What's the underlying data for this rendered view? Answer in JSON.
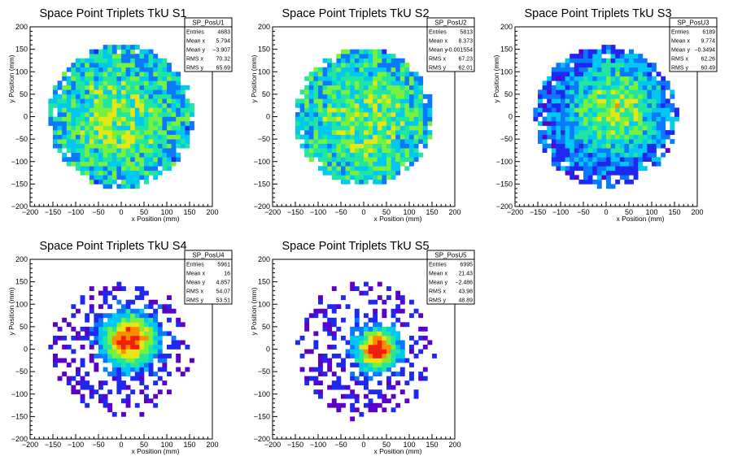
{
  "chart_data": [
    {
      "type": "heatmap",
      "title": "Space Point Triplets TkU S1",
      "xlabel": "x Position (mm)",
      "ylabel": "y Position (mm)",
      "xlim": [
        -200,
        200
      ],
      "ylim": [
        -200,
        200
      ],
      "xticks": [
        "−200",
        "−150",
        "−100",
        "−50",
        "0",
        "50",
        "100",
        "150",
        "200"
      ],
      "yticks": [
        "−200",
        "−150",
        "−100",
        "−50",
        "0",
        "50",
        "100",
        "150",
        "200"
      ],
      "stats": {
        "name": "SP_PosU1",
        "rows": [
          [
            "Entries",
            "4683"
          ],
          [
            "Mean x",
            "5.794"
          ],
          [
            "Mean y",
            "−3.907"
          ],
          [
            "RMS x",
            "70.32"
          ],
          [
            "RMS y",
            "65.69"
          ]
        ]
      },
      "distribution": {
        "shape": "uniform-disk",
        "radius_mm": 155,
        "center_x_mm": 5.8,
        "center_y_mm": -3.9,
        "peak_center_mm": [
          -10,
          -5
        ]
      }
    },
    {
      "type": "heatmap",
      "title": "Space Point Triplets TkU S2",
      "xlabel": "x Position (mm)",
      "ylabel": "y Position (mm)",
      "xlim": [
        -200,
        200
      ],
      "ylim": [
        -200,
        200
      ],
      "xticks": [
        "−200",
        "−150",
        "−100",
        "−50",
        "0",
        "50",
        "100",
        "150",
        "200"
      ],
      "yticks": [
        "−200",
        "−150",
        "−100",
        "−50",
        "0",
        "50",
        "100",
        "150",
        "200"
      ],
      "stats": {
        "name": "SP_PosU2",
        "rows": [
          [
            "Entries",
            "5813"
          ],
          [
            "Mean x",
            "8.373"
          ],
          [
            "Mean y",
            "−0.001554"
          ],
          [
            "RMS x",
            "67.23"
          ],
          [
            "RMS y",
            "62.01"
          ]
        ]
      },
      "distribution": {
        "shape": "uniform-disk",
        "radius_mm": 150,
        "center_x_mm": 8.4,
        "center_y_mm": 0.0,
        "peak_center_mm": [
          0,
          0
        ]
      }
    },
    {
      "type": "heatmap",
      "title": "Space Point Triplets TkU S3",
      "xlabel": "x Position (mm)",
      "ylabel": "y Position (mm)",
      "xlim": [
        -200,
        200
      ],
      "ylim": [
        -200,
        200
      ],
      "xticks": [
        "−200",
        "−150",
        "−100",
        "−50",
        "0",
        "50",
        "100",
        "150",
        "200"
      ],
      "yticks": [
        "−200",
        "−150",
        "−100",
        "−50",
        "0",
        "50",
        "100",
        "150",
        "200"
      ],
      "stats": {
        "name": "SP_PosU3",
        "rows": [
          [
            "Entries",
            "6189"
          ],
          [
            "Mean x",
            "9.774"
          ],
          [
            "Mean y",
            "−0.3494"
          ],
          [
            "RMS x",
            "62.26"
          ],
          [
            "RMS y",
            "60.49"
          ]
        ]
      },
      "distribution": {
        "shape": "soft-disk",
        "radius_mm": 150,
        "center_x_mm": 9.8,
        "center_y_mm": -0.3,
        "peak_center_mm": [
          20,
          15
        ]
      }
    },
    {
      "type": "heatmap",
      "title": "Space Point Triplets TkU S4",
      "xlabel": "x Position (mm)",
      "ylabel": "y Position (mm)",
      "xlim": [
        -200,
        200
      ],
      "ylim": [
        -200,
        200
      ],
      "xticks": [
        "−200",
        "−150",
        "−100",
        "−50",
        "0",
        "50",
        "100",
        "150",
        "200"
      ],
      "yticks": [
        "−200",
        "−150",
        "−100",
        "−50",
        "0",
        "50",
        "100",
        "150",
        "200"
      ],
      "stats": {
        "name": "SP_PosU4",
        "rows": [
          [
            "Entries",
            "5961"
          ],
          [
            "Mean x",
            "16"
          ],
          [
            "Mean y",
            "4.857"
          ],
          [
            "RMS x",
            "54.07"
          ],
          [
            "RMS y",
            "53.51"
          ]
        ]
      },
      "distribution": {
        "shape": "gaussian-core-halo",
        "radius_mm": 150,
        "center_x_mm": 16,
        "center_y_mm": 4.9,
        "peak_center_mm": [
          20,
          20
        ]
      }
    },
    {
      "type": "heatmap",
      "title": "Space Point Triplets TkU S5",
      "xlabel": "x Position (mm)",
      "ylabel": "y Position (mm)",
      "xlim": [
        -200,
        200
      ],
      "ylim": [
        -200,
        200
      ],
      "xticks": [
        "−200",
        "−150",
        "−100",
        "−50",
        "0",
        "50",
        "100",
        "150",
        "200"
      ],
      "yticks": [
        "−200",
        "−150",
        "−100",
        "−50",
        "0",
        "50",
        "100",
        "150",
        "200"
      ],
      "stats": {
        "name": "SP_PosU5",
        "rows": [
          [
            "Entries",
            "6995"
          ],
          [
            "Mean x",
            "21.43"
          ],
          [
            "Mean y",
            "−2.486"
          ],
          [
            "RMS x",
            "43.98"
          ],
          [
            "RMS y",
            "48.89"
          ]
        ]
      },
      "distribution": {
        "shape": "gaussian-core-halo",
        "radius_mm": 150,
        "center_x_mm": 21.4,
        "center_y_mm": -2.5,
        "peak_center_mm": [
          30,
          0
        ]
      }
    }
  ],
  "colors": {
    "palette": [
      "#5a00c8",
      "#1e28f0",
      "#0a78ff",
      "#00c8f0",
      "#20e6a0",
      "#78f03c",
      "#e6e614",
      "#ff8c00",
      "#f01e0a"
    ],
    "frame": "#000000",
    "background": "#ffffff"
  }
}
